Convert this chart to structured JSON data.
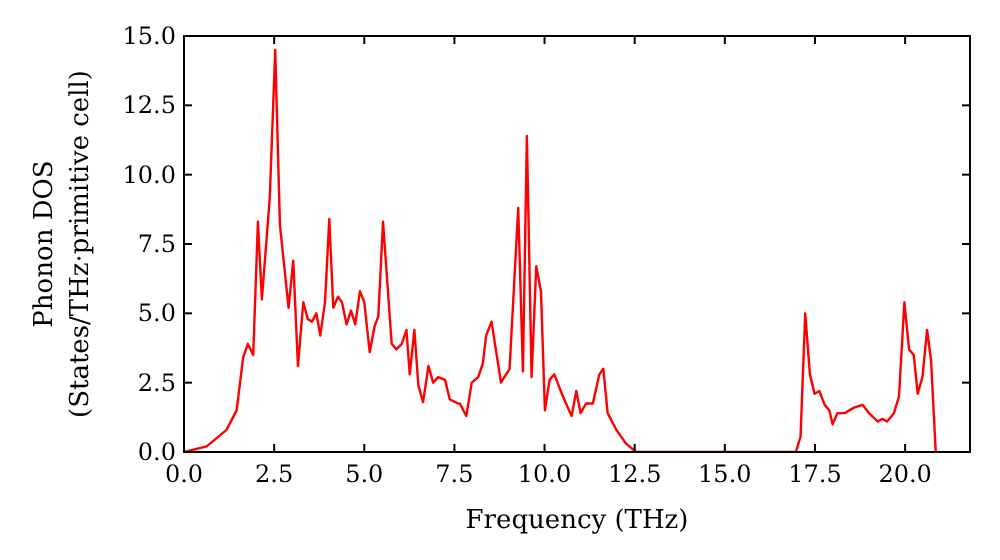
{
  "chart_data": {
    "type": "line",
    "xlabel": "Frequency (THz)",
    "ylabel": "Phonon DOS\n(States/THz·primitive cell)",
    "xlim": [
      0,
      21.8
    ],
    "ylim": [
      0,
      15
    ],
    "xticks": [
      {
        "value": 0,
        "label": "0.0"
      },
      {
        "value": 2.5,
        "label": "2.5"
      },
      {
        "value": 5,
        "label": "5.0"
      },
      {
        "value": 7.5,
        "label": "7.5"
      },
      {
        "value": 10,
        "label": "10.0"
      },
      {
        "value": 12.5,
        "label": "12.5"
      },
      {
        "value": 15,
        "label": "15.0"
      },
      {
        "value": 17.5,
        "label": "17.5"
      },
      {
        "value": 20,
        "label": "20.0"
      }
    ],
    "yticks": [
      {
        "value": 0,
        "label": "0.0"
      },
      {
        "value": 2.5,
        "label": "2.5"
      },
      {
        "value": 5,
        "label": "5.0"
      },
      {
        "value": 7.5,
        "label": "7.5"
      },
      {
        "value": 10,
        "label": "10.0"
      },
      {
        "value": 12.5,
        "label": "12.5"
      },
      {
        "value": 15,
        "label": "15.0"
      }
    ],
    "grid": false,
    "marker": "none",
    "line_style": "solid",
    "series": [
      {
        "color": "#ff0000",
        "x": [
          0,
          0.63,
          1.18,
          1.46,
          1.64,
          1.77,
          1.92,
          2.05,
          2.16,
          2.38,
          2.53,
          2.66,
          2.9,
          3.03,
          3.16,
          3.31,
          3.43,
          3.55,
          3.67,
          3.78,
          3.91,
          4.03,
          4.14,
          4.27,
          4.38,
          4.51,
          4.63,
          4.75,
          4.88,
          5.0,
          5.15,
          5.28,
          5.39,
          5.52,
          5.76,
          5.89,
          6.04,
          6.17,
          6.26,
          6.39,
          6.5,
          6.63,
          6.78,
          6.91,
          7.05,
          7.24,
          7.37,
          7.6,
          7.65,
          7.83,
          7.98,
          8.16,
          8.29,
          8.38,
          8.53,
          8.79,
          9.03,
          9.27,
          9.4,
          9.51,
          9.64,
          9.77,
          9.9,
          10.01,
          10.14,
          10.27,
          10.51,
          10.75,
          10.88,
          11.0,
          11.15,
          11.34,
          11.52,
          11.63,
          11.75,
          11.99,
          12.26,
          12.54,
          16.97,
          17.1,
          17.23,
          17.36,
          17.49,
          17.62,
          17.77,
          17.9,
          17.99,
          18.12,
          18.32,
          18.58,
          18.82,
          19.0,
          19.24,
          19.37,
          19.5,
          19.69,
          19.83,
          19.98,
          20.11,
          20.24,
          20.35,
          20.48,
          20.61,
          20.72,
          20.85
        ],
        "values": [
          0,
          0.2,
          0.8,
          1.5,
          3.4,
          3.9,
          3.5,
          8.3,
          5.5,
          9.2,
          14.5,
          8.2,
          5.2,
          6.9,
          3.1,
          5.4,
          4.8,
          4.7,
          5.0,
          4.2,
          5.4,
          8.4,
          5.2,
          5.6,
          5.4,
          4.6,
          5.1,
          4.6,
          5.8,
          5.4,
          3.6,
          4.5,
          4.9,
          8.3,
          3.9,
          3.7,
          3.9,
          4.4,
          2.8,
          4.4,
          2.4,
          1.8,
          3.1,
          2.5,
          2.7,
          2.6,
          1.9,
          1.75,
          1.75,
          1.3,
          2.5,
          2.7,
          3.2,
          4.2,
          4.7,
          2.5,
          3.0,
          8.8,
          2.9,
          11.4,
          2.7,
          6.7,
          5.8,
          1.5,
          2.6,
          2.8,
          2.0,
          1.3,
          2.2,
          1.4,
          1.75,
          1.75,
          2.8,
          3.0,
          1.4,
          0.8,
          0.3,
          0,
          0,
          0.55,
          5.0,
          2.8,
          2.1,
          2.2,
          1.7,
          1.5,
          1.0,
          1.4,
          1.4,
          1.6,
          1.7,
          1.4,
          1.1,
          1.2,
          1.1,
          1.4,
          2.0,
          5.4,
          3.7,
          3.5,
          2.1,
          2.7,
          4.4,
          3.3,
          0
        ]
      }
    ]
  }
}
